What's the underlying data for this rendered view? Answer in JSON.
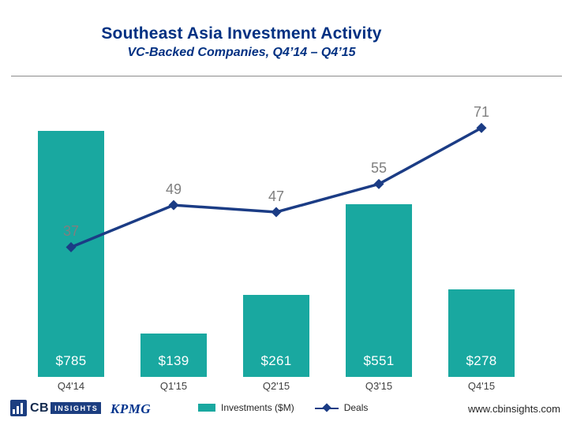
{
  "chart_data": {
    "type": "bar+line",
    "title": "Southeast Asia Investment Activity",
    "subtitle": "VC-Backed Companies, Q4’14 – Q4’15",
    "categories": [
      "Q4'14",
      "Q1'15",
      "Q2'15",
      "Q3'15",
      "Q4'15"
    ],
    "series": [
      {
        "name": "Investments ($M)",
        "type": "bar",
        "values": [
          785,
          139,
          261,
          551,
          278
        ],
        "labels": [
          "$785",
          "$139",
          "$261",
          "$551",
          "$278"
        ],
        "color": "#19a8a0"
      },
      {
        "name": "Deals",
        "type": "line",
        "values": [
          37,
          49,
          47,
          55,
          71
        ],
        "color": "#1b3c85",
        "marker": "diamond"
      }
    ],
    "bar_ylim": [
      0,
      950
    ],
    "line_ylim": [
      0,
      85
    ],
    "grid": false,
    "legend_position": "bottom",
    "bar_label_color": "#ffffff",
    "deal_label_color": "#7f7f7f"
  },
  "footer": {
    "logo_cb": "CB",
    "logo_insights": "INSIGHTS",
    "kpmg_logo": "KPMG",
    "website": "www.cbinsights.com"
  }
}
